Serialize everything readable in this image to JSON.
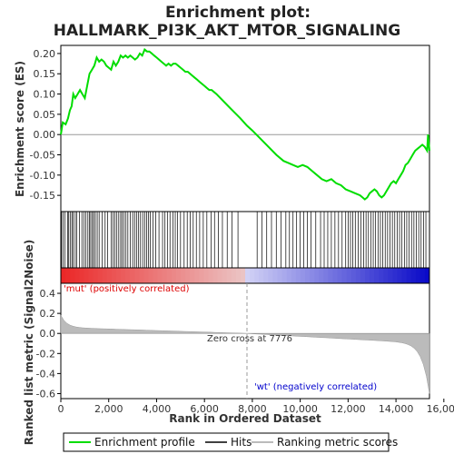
{
  "title_line1": "Enrichment plot:",
  "title_line2": "HALLMARK_PI3K_AKT_MTOR_SIGNALING",
  "top_ylabel": "Enrichment score (ES)",
  "bottom_ylabel": "Ranked list metric (Signal2Noise)",
  "xlabel": "Rank in Ordered Dataset",
  "pos_label": "'mut' (positively correlated)",
  "neg_label": "'wt' (negatively correlated)",
  "zero_cross_label": "Zero cross at 7776",
  "legend": {
    "enrichment": "Enrichment profile",
    "hits": "Hits",
    "ranking": "Ranking metric scores"
  },
  "colors": {
    "profile": "#00dd00",
    "hits": "#000000",
    "ranking_fill": "#bbbbbb",
    "pos_text": "#dd0000",
    "neg_text": "#0000cc"
  },
  "chart_data": {
    "type": "line",
    "x_ticks": [
      "0",
      "2,000",
      "4,000",
      "6,000",
      "8,000",
      "10,000",
      "12,000",
      "14,000",
      "16,000"
    ],
    "x_tick_values": [
      0,
      2000,
      4000,
      6000,
      8000,
      10000,
      12000,
      14000,
      16000
    ],
    "xlim": [
      0,
      15400
    ],
    "es_ylim": [
      -0.19,
      0.22
    ],
    "es_ticks": [
      "0.20",
      "0.15",
      "0.10",
      "0.05",
      "0.00",
      "-0.05",
      "-0.10",
      "-0.15"
    ],
    "es_tick_values": [
      0.2,
      0.15,
      0.1,
      0.05,
      0.0,
      -0.05,
      -0.1,
      -0.15
    ],
    "metric_ylim": [
      -0.65,
      0.5
    ],
    "metric_ticks": [
      "0.4",
      "0.2",
      "0.0",
      "-0.2",
      "-0.4",
      "-0.6"
    ],
    "metric_tick_values": [
      0.4,
      0.2,
      0.0,
      -0.2,
      -0.4,
      -0.6
    ],
    "zero_cross": 7776,
    "series": [
      {
        "name": "Enrichment profile",
        "x": [
          0,
          80,
          200,
          300,
          380,
          450,
          520,
          600,
          700,
          800,
          900,
          1000,
          1100,
          1200,
          1300,
          1400,
          1500,
          1600,
          1700,
          1800,
          1900,
          2000,
          2100,
          2200,
          2300,
          2400,
          2500,
          2600,
          2700,
          2800,
          2900,
          3000,
          3100,
          3200,
          3300,
          3400,
          3500,
          3600,
          3700,
          3800,
          3900,
          4000,
          4100,
          4200,
          4300,
          4400,
          4500,
          4600,
          4700,
          4800,
          4900,
          5000,
          5100,
          5200,
          5300,
          5400,
          5500,
          5600,
          5700,
          5800,
          5900,
          6000,
          6100,
          6200,
          6300,
          6400,
          6500,
          7000,
          7500,
          7776,
          8000,
          8500,
          9000,
          9300,
          9500,
          9700,
          9900,
          10100,
          10300,
          10500,
          10700,
          10900,
          11100,
          11300,
          11500,
          11700,
          11900,
          12100,
          12300,
          12500,
          12600,
          12700,
          12800,
          12900,
          13000,
          13100,
          13200,
          13300,
          13400,
          13500,
          13600,
          13700,
          13800,
          13900,
          14000,
          14100,
          14200,
          14300,
          14400,
          14500,
          14600,
          14700,
          14800,
          14900,
          15000,
          15100,
          15200,
          15300,
          15340,
          15400
        ],
        "values": [
          0.0,
          0.03,
          0.025,
          0.04,
          0.06,
          0.07,
          0.1,
          0.09,
          0.1,
          0.11,
          0.1,
          0.09,
          0.12,
          0.15,
          0.16,
          0.17,
          0.19,
          0.18,
          0.185,
          0.18,
          0.17,
          0.165,
          0.16,
          0.18,
          0.17,
          0.18,
          0.195,
          0.19,
          0.195,
          0.19,
          0.195,
          0.19,
          0.185,
          0.19,
          0.2,
          0.195,
          0.21,
          0.205,
          0.205,
          0.2,
          0.195,
          0.19,
          0.185,
          0.18,
          0.175,
          0.17,
          0.175,
          0.17,
          0.175,
          0.175,
          0.17,
          0.165,
          0.16,
          0.155,
          0.155,
          0.15,
          0.145,
          0.14,
          0.135,
          0.13,
          0.125,
          0.12,
          0.115,
          0.11,
          0.11,
          0.105,
          0.1,
          0.07,
          0.04,
          0.022,
          0.01,
          -0.02,
          -0.05,
          -0.065,
          -0.07,
          -0.075,
          -0.08,
          -0.075,
          -0.08,
          -0.09,
          -0.1,
          -0.11,
          -0.115,
          -0.11,
          -0.12,
          -0.125,
          -0.135,
          -0.14,
          -0.145,
          -0.15,
          -0.155,
          -0.16,
          -0.155,
          -0.145,
          -0.14,
          -0.135,
          -0.14,
          -0.15,
          -0.155,
          -0.15,
          -0.14,
          -0.13,
          -0.12,
          -0.115,
          -0.12,
          -0.11,
          -0.1,
          -0.09,
          -0.075,
          -0.07,
          -0.06,
          -0.05,
          -0.04,
          -0.035,
          -0.03,
          -0.025,
          -0.03,
          -0.04,
          0.0,
          -0.04
        ]
      }
    ],
    "hits": [
      30,
      90,
      170,
      280,
      330,
      390,
      460,
      510,
      600,
      660,
      780,
      880,
      960,
      1040,
      1130,
      1190,
      1250,
      1320,
      1370,
      1440,
      1520,
      1600,
      1720,
      1850,
      1950,
      2100,
      2180,
      2260,
      2340,
      2420,
      2500,
      2560,
      2640,
      2720,
      2800,
      2900,
      3000,
      3080,
      3160,
      3250,
      3330,
      3420,
      3500,
      3580,
      3660,
      3740,
      3850,
      3960,
      4100,
      4250,
      4350,
      4450,
      4560,
      4680,
      4780,
      4880,
      5000,
      5150,
      5280,
      5400,
      5530,
      5660,
      5800,
      5950,
      6100,
      6280,
      6420,
      6580,
      6750,
      6950,
      7150,
      7400,
      8200,
      8400,
      8600,
      8800,
      9000,
      9200,
      9400,
      9550,
      9700,
      9850,
      10000,
      10150,
      10300,
      10450,
      10650,
      10850,
      11000,
      11150,
      11300,
      11450,
      11600,
      11750,
      11900,
      12000,
      12100,
      12200,
      12300,
      12420,
      12540,
      12650,
      12750,
      12850,
      12950,
      13050,
      13150,
      13250,
      13350,
      13450,
      13550,
      13650,
      13750,
      13850,
      13950,
      14050,
      14150,
      14250,
      14350,
      14450,
      14550,
      14650,
      14750,
      14850,
      14950,
      15050,
      15150,
      15250
    ]
  }
}
